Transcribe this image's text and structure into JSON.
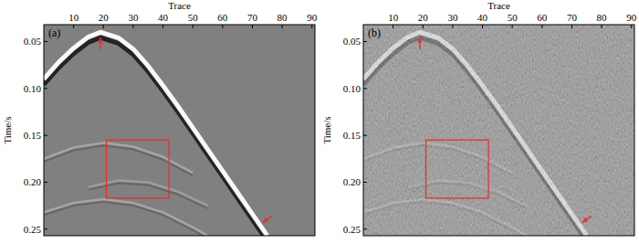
{
  "chart_data": [
    {
      "type": "seismic",
      "title": "(a)",
      "x_label": "Trace",
      "y_label": "Time/s",
      "xlim": [
        0,
        91
      ],
      "ylim": [
        0.032,
        0.257
      ],
      "xticks": [
        10,
        20,
        30,
        40,
        50,
        60,
        70,
        80,
        90
      ],
      "yticks": [
        0.05,
        0.1,
        0.15,
        0.2,
        0.25
      ],
      "series": [
        {
          "color": "#ffffff",
          "x": [
            0,
            5,
            10,
            15,
            19,
            25,
            30,
            35,
            40,
            45,
            50,
            55,
            60,
            65,
            70,
            75
          ],
          "values": [
            0.09,
            0.072,
            0.057,
            0.045,
            0.04,
            0.046,
            0.058,
            0.076,
            0.097,
            0.119,
            0.142,
            0.165,
            0.188,
            0.211,
            0.234,
            0.257
          ]
        },
        {
          "color": "#b5b5b5",
          "x": [
            0,
            10,
            20,
            30,
            40,
            50
          ],
          "values": [
            0.175,
            0.163,
            0.158,
            0.162,
            0.173,
            0.19
          ]
        },
        {
          "color": "#a8a8a8",
          "x": [
            15,
            25,
            35,
            45,
            55
          ],
          "values": [
            0.205,
            0.198,
            0.2,
            0.21,
            0.225
          ]
        },
        {
          "color": "#b5b5b5",
          "x": [
            0,
            10,
            20,
            30,
            40,
            50,
            55
          ],
          "values": [
            0.232,
            0.222,
            0.218,
            0.222,
            0.232,
            0.248,
            0.257
          ]
        }
      ],
      "box": {
        "x": [
          21,
          42
        ],
        "y": [
          0.155,
          0.217
        ],
        "color": "#e8312a"
      },
      "arrows": [
        {
          "x": [
            19,
            19
          ],
          "y": [
            0.058,
            0.046
          ],
          "color": "#e8312a"
        },
        {
          "x": [
            76.5,
            73.5
          ],
          "y": [
            0.236,
            0.243
          ],
          "color": "#e8312a"
        }
      ]
    },
    {
      "type": "seismic_noisy",
      "title": "(b)",
      "x_label": "Trace",
      "y_label": "Time/s",
      "xlim": [
        0,
        91
      ],
      "ylim": [
        0.032,
        0.257
      ],
      "xticks": [
        10,
        20,
        30,
        40,
        50,
        60,
        70,
        80,
        90
      ],
      "yticks": [
        0.05,
        0.1,
        0.15,
        0.2,
        0.25
      ],
      "series": [
        {
          "color": "#ffffff",
          "x": [
            0,
            5,
            10,
            15,
            19,
            25,
            30,
            35,
            40,
            45,
            50,
            55,
            60,
            65,
            70,
            75
          ],
          "values": [
            0.09,
            0.072,
            0.057,
            0.045,
            0.04,
            0.046,
            0.058,
            0.076,
            0.097,
            0.119,
            0.142,
            0.165,
            0.188,
            0.211,
            0.234,
            0.257
          ]
        },
        {
          "color": "#b5b5b5",
          "x": [
            0,
            10,
            20,
            30,
            40,
            50
          ],
          "values": [
            0.175,
            0.163,
            0.158,
            0.162,
            0.173,
            0.19
          ]
        },
        {
          "color": "#a8a8a8",
          "x": [
            15,
            25,
            35,
            45,
            55
          ],
          "values": [
            0.205,
            0.198,
            0.2,
            0.21,
            0.225
          ]
        },
        {
          "color": "#b5b5b5",
          "x": [
            0,
            10,
            20,
            30,
            40,
            50,
            55
          ],
          "values": [
            0.232,
            0.222,
            0.218,
            0.222,
            0.232,
            0.248,
            0.257
          ]
        }
      ],
      "box": {
        "x": [
          21,
          42
        ],
        "y": [
          0.155,
          0.217
        ],
        "color": "#e8312a"
      },
      "arrows": [
        {
          "x": [
            19,
            19
          ],
          "y": [
            0.058,
            0.046
          ],
          "color": "#e8312a"
        },
        {
          "x": [
            76.5,
            73.5
          ],
          "y": [
            0.236,
            0.243
          ],
          "color": "#e8312a"
        }
      ]
    }
  ]
}
